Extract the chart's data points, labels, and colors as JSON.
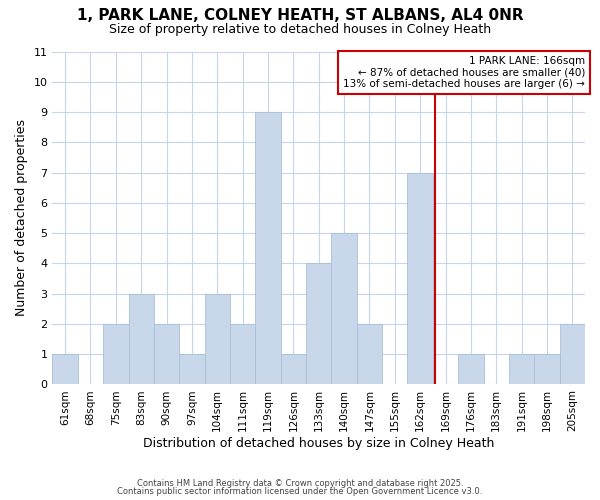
{
  "title1": "1, PARK LANE, COLNEY HEATH, ST ALBANS, AL4 0NR",
  "title2": "Size of property relative to detached houses in Colney Heath",
  "xlabel": "Distribution of detached houses by size in Colney Heath",
  "ylabel": "Number of detached properties",
  "categories": [
    "61sqm",
    "68sqm",
    "75sqm",
    "83sqm",
    "90sqm",
    "97sqm",
    "104sqm",
    "111sqm",
    "119sqm",
    "126sqm",
    "133sqm",
    "140sqm",
    "147sqm",
    "155sqm",
    "162sqm",
    "169sqm",
    "176sqm",
    "183sqm",
    "191sqm",
    "198sqm",
    "205sqm"
  ],
  "values": [
    1,
    0,
    2,
    3,
    2,
    1,
    3,
    2,
    9,
    1,
    4,
    5,
    2,
    0,
    7,
    0,
    1,
    0,
    1,
    1,
    2
  ],
  "bar_color": "#c8d8ea",
  "bar_edge_color": "#a8c0d8",
  "vline_color": "#cc0000",
  "annotation_text": "1 PARK LANE: 166sqm\n← 87% of detached houses are smaller (40)\n13% of semi-detached houses are larger (6) →",
  "annotation_box_color": "#ffffff",
  "annotation_box_edge": "#cc0000",
  "ylim_max": 11,
  "yticks": [
    0,
    1,
    2,
    3,
    4,
    5,
    6,
    7,
    8,
    9,
    10,
    11
  ],
  "grid_color": "#c8d4e8",
  "plot_bg_color": "#ffffff",
  "fig_bg_color": "#ffffff",
  "footer1": "Contains HM Land Registry data © Crown copyright and database right 2025.",
  "footer2": "Contains public sector information licensed under the Open Government Licence v3.0."
}
